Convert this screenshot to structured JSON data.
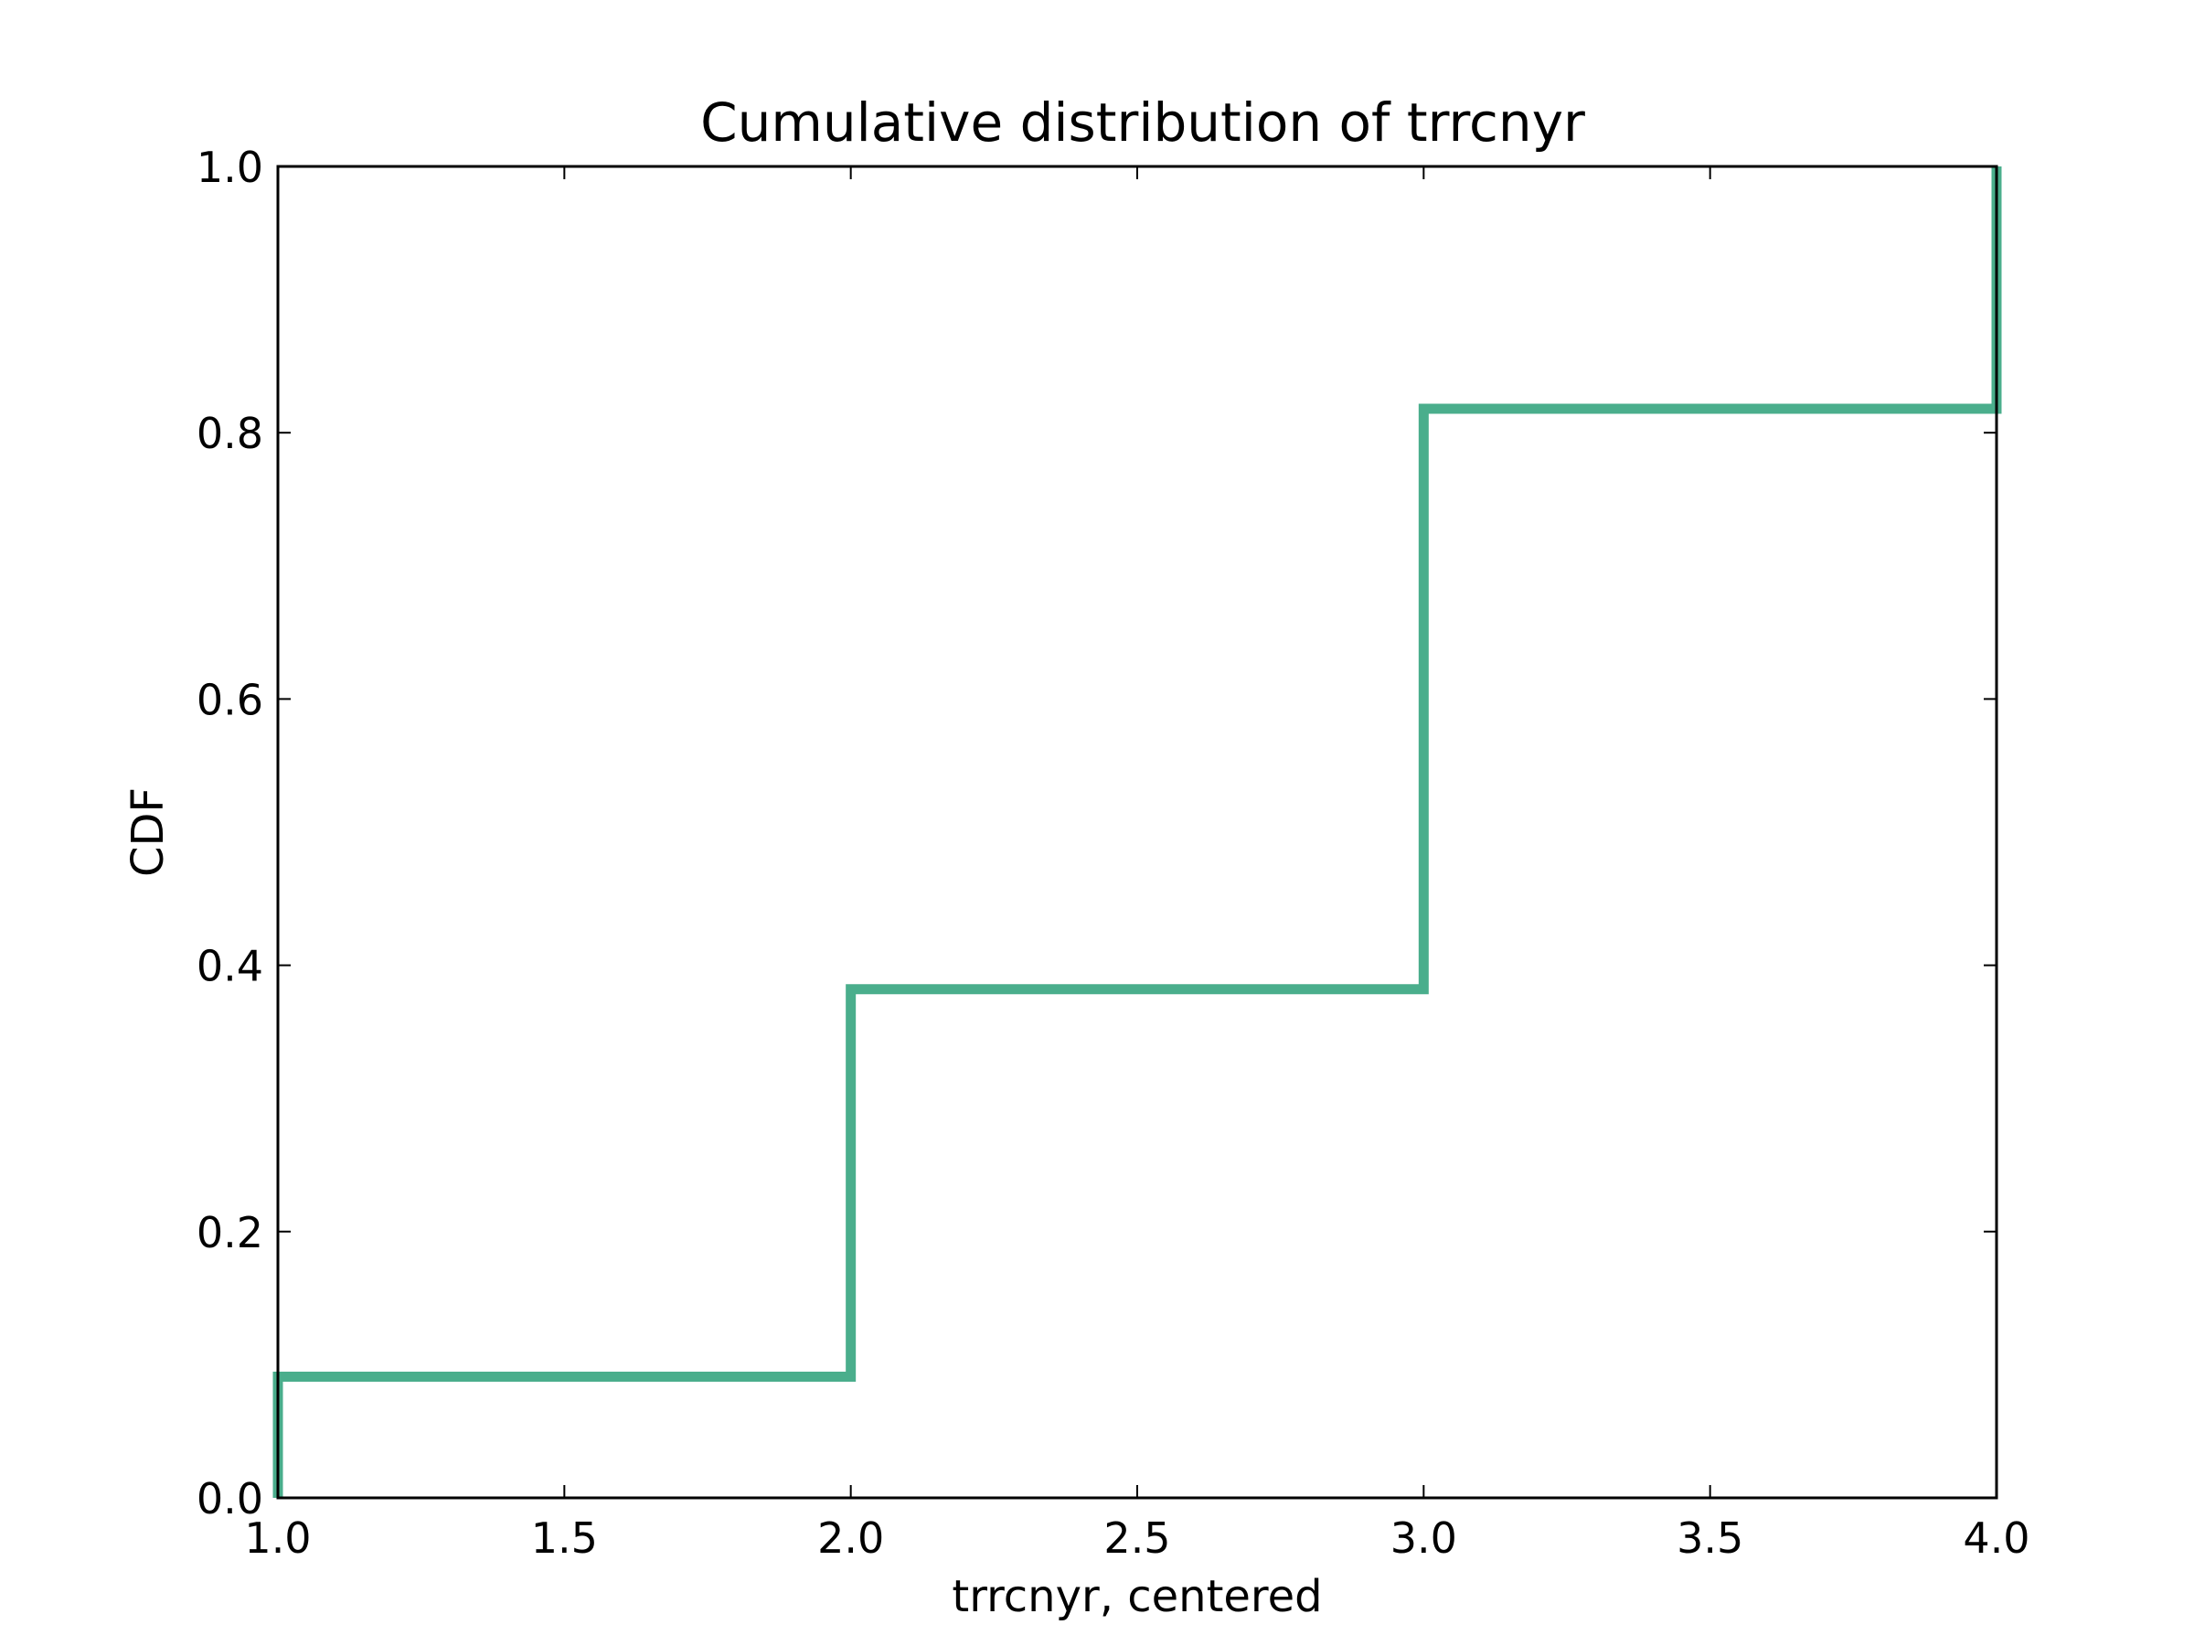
{
  "chart_data": {
    "type": "line",
    "step": "post",
    "title": "Cumulative distribution of trrcnyr",
    "xlabel": "trrcnyr, centered",
    "ylabel": "CDF",
    "xlim": [
      1.0,
      4.0
    ],
    "ylim": [
      0.0,
      1.0
    ],
    "xticks": [
      "1.0",
      "1.5",
      "2.0",
      "2.5",
      "3.0",
      "3.5",
      "4.0"
    ],
    "yticks": [
      "0.0",
      "0.2",
      "0.4",
      "0.6",
      "0.8",
      "1.0"
    ],
    "grid": false,
    "legend": "none",
    "series": [
      {
        "color": "#4aae8c",
        "x": [
          1.0,
          1.0,
          2.0,
          2.0,
          3.0,
          3.0,
          4.0,
          4.0
        ],
        "y": [
          0.0,
          0.091,
          0.091,
          0.382,
          0.382,
          0.818,
          0.818,
          1.0
        ]
      }
    ]
  }
}
